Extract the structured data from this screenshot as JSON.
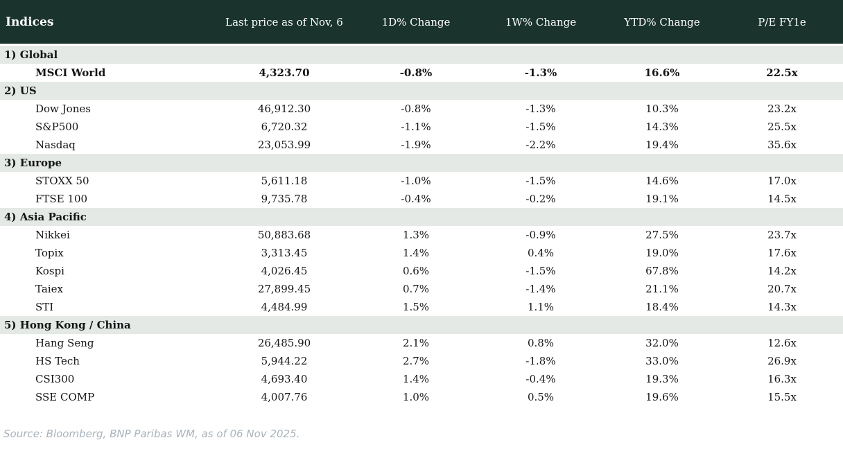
{
  "colors": {
    "header_bg": "#1a332d",
    "band_bg": "#e4e9e6",
    "negative": "#bf0000",
    "positive": "#0f930f"
  },
  "table": {
    "title": "Indices",
    "columns": [
      "Last price as of Nov, 6",
      "1D% Change",
      "1W% Change",
      "YTD% Change",
      "P/E FY1e"
    ],
    "sections": [
      {
        "label": "1) Global",
        "rows": [
          {
            "name": "MSCI World",
            "price": "4,323.70",
            "d1": "-0.8%",
            "w1": "-1.3%",
            "ytd": "16.6%",
            "pe": "22.5x",
            "bold": true
          }
        ]
      },
      {
        "label": "2) US",
        "rows": [
          {
            "name": "Dow Jones",
            "price": "46,912.30",
            "d1": "-0.8%",
            "w1": "-1.3%",
            "ytd": "10.3%",
            "pe": "23.2x"
          },
          {
            "name": "S&P500",
            "price": "6,720.32",
            "d1": "-1.1%",
            "w1": "-1.5%",
            "ytd": "14.3%",
            "pe": "25.5x"
          },
          {
            "name": "Nasdaq",
            "price": "23,053.99",
            "d1": "-1.9%",
            "w1": "-2.2%",
            "ytd": "19.4%",
            "pe": "35.6x"
          }
        ]
      },
      {
        "label": "3) Europe",
        "rows": [
          {
            "name": "STOXX 50",
            "price": "5,611.18",
            "d1": "-1.0%",
            "w1": "-1.5%",
            "ytd": "14.6%",
            "pe": "17.0x"
          },
          {
            "name": "FTSE 100",
            "price": "9,735.78",
            "d1": "-0.4%",
            "w1": "-0.2%",
            "ytd": "19.1%",
            "pe": "14.5x"
          }
        ]
      },
      {
        "label": "4) Asia Pacific",
        "rows": [
          {
            "name": "Nikkei",
            "price": "50,883.68",
            "d1": "1.3%",
            "w1": "-0.9%",
            "ytd": "27.5%",
            "pe": "23.7x"
          },
          {
            "name": "Topix",
            "price": "3,313.45",
            "d1": "1.4%",
            "w1": "0.4%",
            "ytd": "19.0%",
            "pe": "17.6x"
          },
          {
            "name": "Kospi",
            "price": "4,026.45",
            "d1": "0.6%",
            "w1": "-1.5%",
            "ytd": "67.8%",
            "pe": "14.2x"
          },
          {
            "name": "Taiex",
            "price": "27,899.45",
            "d1": "0.7%",
            "w1": "-1.4%",
            "ytd": "21.1%",
            "pe": "20.7x"
          },
          {
            "name": "STI",
            "price": "4,484.99",
            "d1": "1.5%",
            "w1": "1.1%",
            "ytd": "18.4%",
            "pe": "14.3x"
          }
        ]
      },
      {
        "label": "5) Hong Kong / China",
        "rows": [
          {
            "name": "Hang Seng",
            "price": "26,485.90",
            "d1": "2.1%",
            "w1": "0.8%",
            "ytd": "32.0%",
            "pe": "12.6x"
          },
          {
            "name": "HS Tech",
            "price": "5,944.22",
            "d1": "2.7%",
            "w1": "-1.8%",
            "ytd": "33.0%",
            "pe": "26.9x"
          },
          {
            "name": "CSI300",
            "price": "4,693.40",
            "d1": "1.4%",
            "w1": "-0.4%",
            "ytd": "19.3%",
            "pe": "16.3x"
          },
          {
            "name": "SSE COMP",
            "price": "4,007.76",
            "d1": "1.0%",
            "w1": "0.5%",
            "ytd": "19.6%",
            "pe": "15.5x"
          }
        ]
      }
    ]
  },
  "footer": {
    "source": "Source: Bloomberg, BNP Paribas WM, as of 06 Nov 2025."
  }
}
